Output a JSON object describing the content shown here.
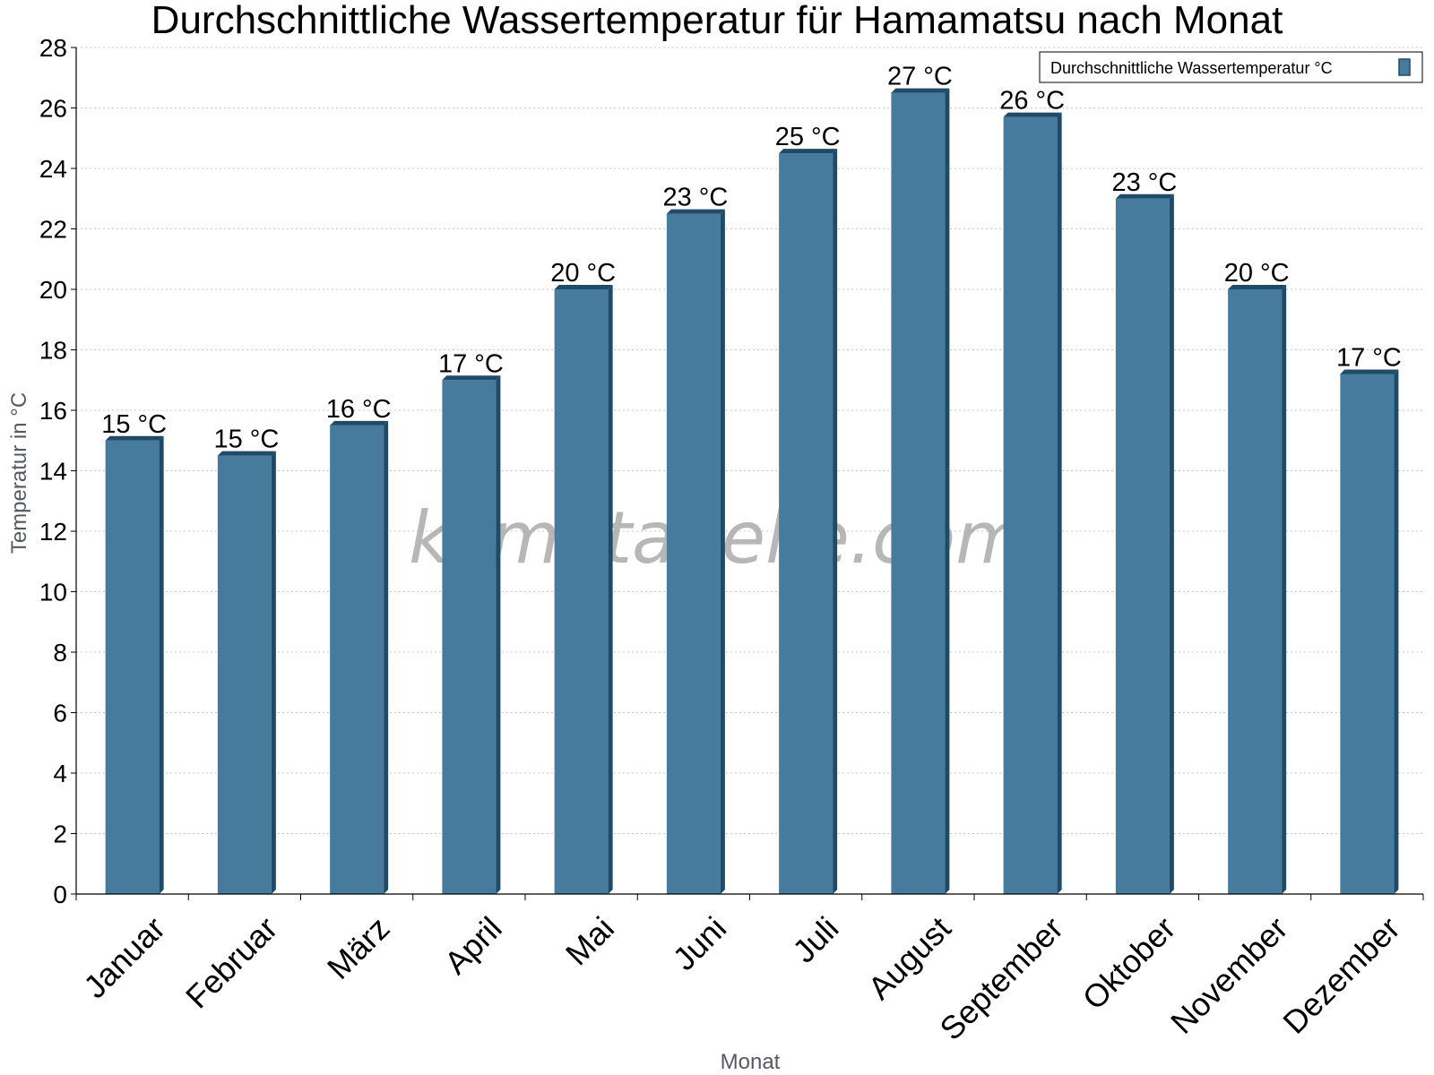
{
  "chart_data": {
    "type": "bar",
    "title": "Durchschnittliche Wassertemperatur für Hamamatsu nach Monat",
    "xlabel": "Monat",
    "ylabel": "Temperatur in °C",
    "ylim": [
      0,
      28
    ],
    "yticks": [
      0,
      2,
      4,
      6,
      8,
      10,
      12,
      14,
      16,
      18,
      20,
      22,
      24,
      26,
      28
    ],
    "grid": true,
    "legend_position": "top-right",
    "categories": [
      "Januar",
      "Februar",
      "März",
      "April",
      "Mai",
      "Juni",
      "Juli",
      "August",
      "September",
      "Oktober",
      "November",
      "Dezember"
    ],
    "series": [
      {
        "name": "Durchschnittliche Wassertemperatur °C",
        "color": "#467b9e",
        "values": [
          15.0,
          14.5,
          15.5,
          17.0,
          20.0,
          22.5,
          24.5,
          26.5,
          25.7,
          23.0,
          20.0,
          17.2
        ],
        "labels": [
          "15 °C",
          "15 °C",
          "16 °C",
          "17 °C",
          "20 °C",
          "23 °C",
          "25 °C",
          "27 °C",
          "26 °C",
          "23 °C",
          "20 °C",
          "17 °C"
        ]
      }
    ],
    "watermark": "klimatabelle.com"
  }
}
